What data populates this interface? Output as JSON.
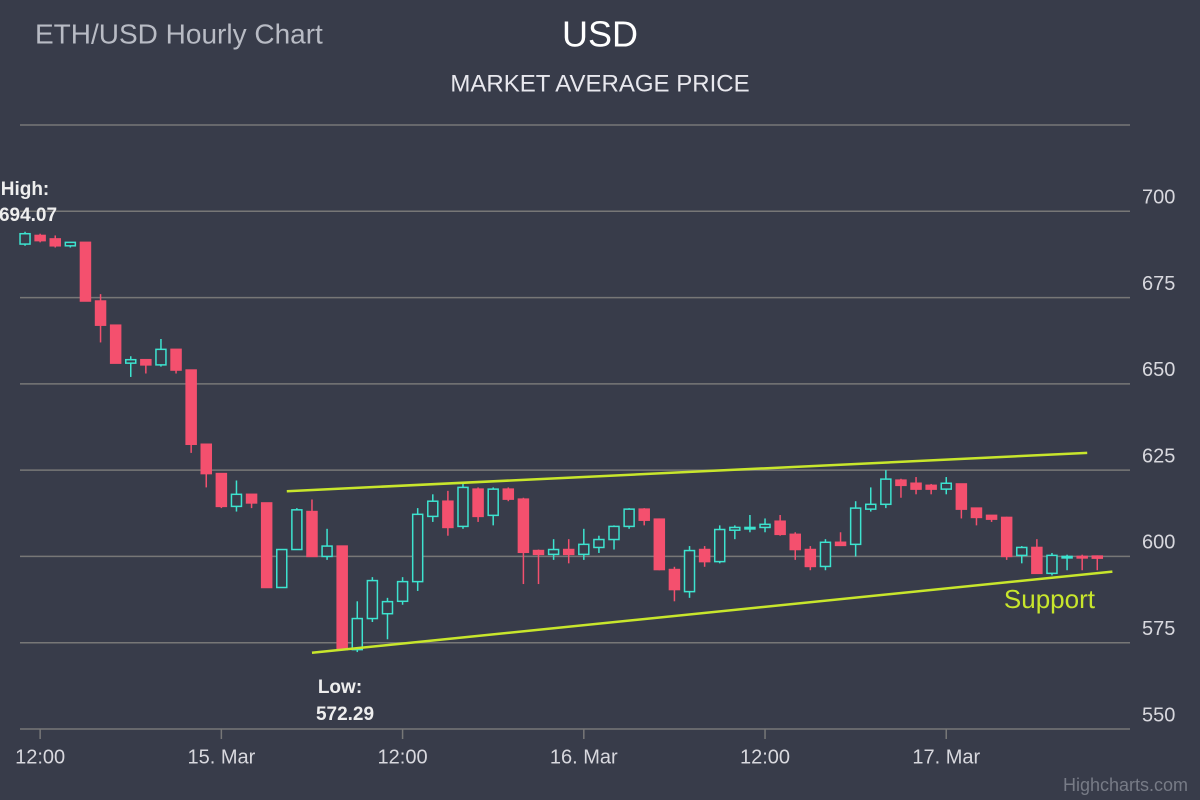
{
  "chart_data": {
    "type": "candlestick",
    "page_title": "ETH/USD Hourly Chart",
    "title": "USD",
    "subtitle": "MARKET AVERAGE PRICE",
    "credits": "Highcharts.com",
    "up_color": "#3de3cf",
    "down_color": "#f4506e",
    "trend_color": "#c8e62c",
    "grid": true,
    "ylim": [
      550,
      725
    ],
    "yticks": [
      550,
      575,
      600,
      625,
      650,
      675,
      700
    ],
    "xlim": [
      "14. Mar 10:40",
      "17. Mar 12:10"
    ],
    "xticks": [
      {
        "value": "14. Mar 12:00",
        "label": "12:00"
      },
      {
        "value": "15. Mar 00:00",
        "label": "15. Mar"
      },
      {
        "value": "15. Mar 12:00",
        "label": "12:00"
      },
      {
        "value": "16. Mar 00:00",
        "label": "16. Mar"
      },
      {
        "value": "16. Mar 12:00",
        "label": "12:00"
      },
      {
        "value": "17. Mar 00:00",
        "label": "17. Mar"
      }
    ],
    "x": [
      "14. Mar 11:00",
      "14. Mar 12:00",
      "14. Mar 13:00",
      "14. Mar 14:00",
      "14. Mar 15:00",
      "14. Mar 16:00",
      "14. Mar 17:00",
      "14. Mar 18:00",
      "14. Mar 19:00",
      "14. Mar 20:00",
      "14. Mar 21:00",
      "14. Mar 22:00",
      "14. Mar 23:00",
      "15. Mar 00:00",
      "15. Mar 01:00",
      "15. Mar 02:00",
      "15. Mar 03:00",
      "15. Mar 04:00",
      "15. Mar 05:00",
      "15. Mar 06:00",
      "15. Mar 07:00",
      "15. Mar 08:00",
      "15. Mar 09:00",
      "15. Mar 10:00",
      "15. Mar 11:00",
      "15. Mar 12:00",
      "15. Mar 13:00",
      "15. Mar 14:00",
      "15. Mar 15:00",
      "15. Mar 16:00",
      "15. Mar 17:00",
      "15. Mar 18:00",
      "15. Mar 19:00",
      "15. Mar 20:00",
      "15. Mar 21:00",
      "15. Mar 22:00",
      "15. Mar 23:00",
      "16. Mar 00:00",
      "16. Mar 01:00",
      "16. Mar 02:00",
      "16. Mar 03:00",
      "16. Mar 04:00",
      "16. Mar 05:00",
      "16. Mar 06:00",
      "16. Mar 07:00",
      "16. Mar 08:00",
      "16. Mar 09:00",
      "16. Mar 10:00",
      "16. Mar 11:00",
      "16. Mar 12:00",
      "16. Mar 13:00",
      "16. Mar 14:00",
      "16. Mar 15:00",
      "16. Mar 16:00",
      "16. Mar 17:00",
      "16. Mar 18:00",
      "16. Mar 19:00",
      "16. Mar 20:00",
      "16. Mar 21:00",
      "16. Mar 22:00",
      "16. Mar 23:00",
      "17. Mar 00:00",
      "17. Mar 01:00",
      "17. Mar 02:00",
      "17. Mar 03:00",
      "17. Mar 04:00",
      "17. Mar 05:00",
      "17. Mar 06:00",
      "17. Mar 07:00",
      "17. Mar 08:00",
      "17. Mar 09:00",
      "17. Mar 10:00"
    ],
    "open": [
      690.5,
      693,
      692,
      690,
      691,
      674,
      667,
      656,
      657,
      655.5,
      660,
      654,
      632.5,
      624,
      614.5,
      618,
      615.5,
      591,
      602,
      613,
      600,
      603,
      573,
      582,
      583.4,
      587,
      592.7,
      611.6,
      616,
      608.7,
      619.5,
      611.9,
      619.5,
      616.6,
      601.7,
      600.6,
      602,
      600.6,
      602.6,
      604.9,
      608.7,
      613.7,
      610.8,
      596.2,
      589.8,
      602,
      598.5,
      607.6,
      608.1,
      608.4,
      610.2,
      606.4,
      602,
      597.1,
      604.1,
      603.5,
      613.7,
      615.1,
      622.1,
      621.2,
      620.6,
      619.5,
      621,
      614,
      611.9,
      611.3,
      600.3,
      602.6,
      595.1,
      599.7,
      600,
      600.1
    ],
    "high": [
      694.07,
      693.5,
      693,
      691,
      691,
      676,
      667,
      658,
      657,
      663,
      660,
      654,
      632.5,
      624,
      622,
      618,
      615.5,
      602,
      614,
      616.5,
      608,
      603,
      587,
      594,
      588,
      594,
      614,
      618,
      619,
      621,
      620,
      620,
      620,
      617,
      602,
      605,
      605,
      608,
      606,
      609,
      614,
      614,
      611,
      597,
      603,
      603,
      609,
      609,
      612,
      611,
      612,
      607,
      603,
      605,
      607,
      616,
      620,
      625,
      622.5,
      623,
      621,
      623,
      621,
      614,
      612,
      611.5,
      603,
      605,
      601,
      600.5,
      600.5,
      600.3
    ],
    "low": [
      690,
      691,
      689.5,
      689.5,
      674,
      662,
      656,
      652,
      653,
      655,
      653,
      630,
      620,
      614,
      613,
      614,
      591,
      591,
      602,
      600,
      599,
      573,
      572.29,
      581,
      576,
      586,
      590,
      610,
      606,
      608,
      610,
      609,
      616,
      592,
      592,
      599,
      598,
      599,
      601,
      602,
      608,
      609,
      596,
      587,
      588,
      597,
      598,
      605,
      607,
      607,
      606,
      599,
      596,
      596,
      603,
      600,
      613,
      614,
      617,
      618,
      618,
      618,
      611,
      609,
      610,
      599,
      598,
      595,
      594.5,
      596,
      596,
      596
    ],
    "close": [
      693.5,
      691.5,
      690,
      691,
      674,
      667,
      656,
      657,
      655.5,
      660,
      654,
      632.5,
      624,
      614.5,
      618,
      615.5,
      591,
      602,
      613.5,
      600,
      603,
      573,
      582,
      593,
      586.9,
      592.7,
      612.2,
      616,
      608.4,
      620,
      611.6,
      619.5,
      616.6,
      601.2,
      600.6,
      602,
      600.6,
      603.5,
      604.9,
      608.7,
      613.7,
      610.5,
      596.2,
      590.4,
      601.7,
      598.5,
      607.8,
      608.4,
      608.4,
      609.3,
      606.4,
      602,
      597.1,
      604.1,
      603.2,
      614,
      615.1,
      622.4,
      620.6,
      619.5,
      619.5,
      621.2,
      613.7,
      611.3,
      610.8,
      600,
      602.6,
      595.1,
      600.3,
      600,
      599.7,
      599.5
    ],
    "high_label": {
      "text": "High:",
      "value": 694.07
    },
    "low_label": {
      "text": "Low:",
      "value": 572.29
    },
    "resistance": {
      "x": [
        "15. Mar 04:20",
        "17. Mar 09:20"
      ],
      "y": [
        618.9,
        630
      ]
    },
    "support": {
      "label": "Support",
      "x": [
        "15. Mar 06:00",
        "17. Mar 11:00"
      ],
      "y": [
        572.1,
        595.6
      ]
    }
  }
}
